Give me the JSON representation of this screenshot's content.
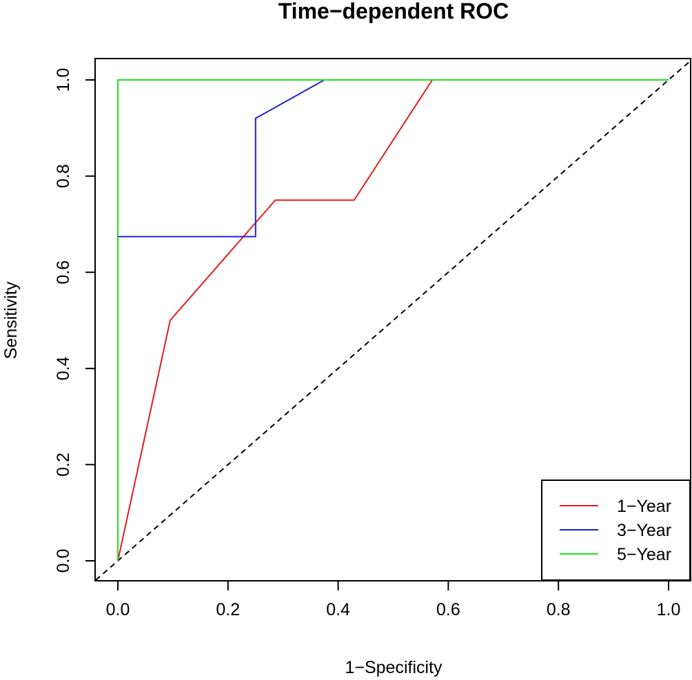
{
  "chart_data": {
    "type": "line",
    "title": "Time−dependent ROC",
    "xlabel": "1−Specificity",
    "ylabel": "Sensitivity",
    "xlim": [
      0,
      1
    ],
    "ylim": [
      0,
      1
    ],
    "x_ticks": [
      "0.0",
      "0.2",
      "0.4",
      "0.6",
      "0.8",
      "1.0"
    ],
    "y_ticks": [
      "0.0",
      "0.2",
      "0.4",
      "0.6",
      "0.8",
      "1.0"
    ],
    "grid": false,
    "legend_position": "bottom-right",
    "series": [
      {
        "name": "1−Year",
        "color": "#e41a1c",
        "points": [
          [
            0,
            0
          ],
          [
            0.095,
            0.5
          ],
          [
            0.286,
            0.75
          ],
          [
            0.429,
            0.75
          ],
          [
            0.571,
            1.0
          ],
          [
            1.0,
            1.0
          ]
        ]
      },
      {
        "name": "3−Year",
        "color": "#1f1fd6",
        "points": [
          [
            0,
            0
          ],
          [
            0,
            0.674
          ],
          [
            0.25,
            0.674
          ],
          [
            0.25,
            0.92
          ],
          [
            0.375,
            1.0
          ],
          [
            1.0,
            1.0
          ]
        ]
      },
      {
        "name": "5−Year",
        "color": "#1ee31e",
        "points": [
          [
            0,
            0
          ],
          [
            0,
            1.0
          ],
          [
            1.0,
            1.0
          ]
        ]
      }
    ],
    "reference_line": {
      "name": "diagonal",
      "color": "#000000",
      "style": "dashed",
      "points": [
        [
          0,
          0
        ],
        [
          1,
          1
        ]
      ]
    }
  }
}
